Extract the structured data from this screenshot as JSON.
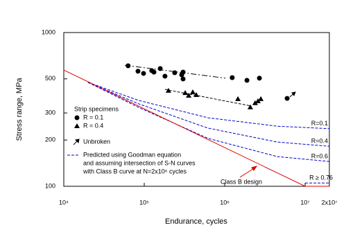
{
  "chart_data": {
    "type": "scatter",
    "x_label": "Endurance, cycles",
    "y_label": "Stress range, MPa",
    "log_x": true,
    "log_y": true,
    "grid": false,
    "xlim": [
      10000,
      20000000
    ],
    "ylim": [
      100,
      1000
    ],
    "xticks": [
      {
        "value": 10000,
        "label": "10⁴"
      },
      {
        "value": 100000,
        "label": "10⁵"
      },
      {
        "value": 1000000,
        "label": "10⁶"
      },
      {
        "value": 10000000,
        "label": "10⁷"
      },
      {
        "value": 20000000,
        "label": "2x10⁷"
      }
    ],
    "yticks": [
      100,
      200,
      300,
      500,
      1000
    ],
    "legend": {
      "title": "Strip specimens",
      "unbroken": "Unbroken",
      "note": [
        "Predicted using Goodman equation",
        "and assuming intersection of S-N curves",
        "with Class B curve at N=2x10⁶ cycles"
      ]
    },
    "series": [
      {
        "name": "R = 0.1",
        "color": "#000000",
        "marker": "circle",
        "line": "none",
        "x": [
          63000,
          83600,
          98000,
          124000,
          132000,
          158000,
          181000,
          239000,
          292000,
          304000,
          304000,
          1240000,
          1890000,
          2700000,
          5970000
        ],
        "values": [
          608,
          560,
          542,
          565,
          553,
          583,
          520,
          548,
          531,
          553,
          499,
          509,
          489,
          505,
          373
        ]
      },
      {
        "name": "R = 0.4",
        "color": "#000000",
        "marker": "triangle",
        "line": "none",
        "x": [
          200000,
          323000,
          357000,
          401000,
          443000,
          1460000,
          2080000,
          2390000,
          2590000,
          2810000
        ],
        "values": [
          419,
          405,
          389,
          410,
          393,
          370,
          327,
          348,
          358,
          370
        ]
      },
      {
        "color": "#000000",
        "marker": "none",
        "line": "dashdot",
        "x": [
          57400,
          1020000
        ],
        "values": [
          613,
          505
        ]
      },
      {
        "color": "#000000",
        "marker": "none",
        "line": "dash",
        "x": [
          181000,
          2130000
        ],
        "values": [
          427,
          333
        ]
      },
      {
        "name": "R=0.1",
        "color": "#0000cc",
        "marker": "none",
        "line": "dash",
        "x": [
          20000,
          85000,
          620000,
          4500000,
          20000000
        ],
        "values": [
          474,
          362,
          279,
          246,
          237
        ]
      },
      {
        "name": "R=0.4",
        "color": "#0000cc",
        "marker": "none",
        "line": "dash",
        "x": [
          20000,
          85000,
          620000,
          4500000,
          20000000
        ],
        "values": [
          474,
          344,
          239,
          194,
          182
        ]
      },
      {
        "name": "R=0.6",
        "color": "#0000cc",
        "marker": "none",
        "line": "dash",
        "x": [
          20000,
          85000,
          620000,
          4500000,
          20000000
        ],
        "values": [
          474,
          326,
          205,
          156,
          145
        ]
      },
      {
        "name": "R ≥ 0.76",
        "color": "#0000cc",
        "marker": "none",
        "line": "dash",
        "x": [
          10000000,
          20000000
        ],
        "values": [
          105,
          105
        ]
      },
      {
        "name": "Class B design",
        "color": "#dd0000",
        "marker": "none",
        "line": "solid",
        "x": [
          10000,
          10000000,
          20000000
        ],
        "values": [
          570,
          100,
          100
        ]
      }
    ]
  }
}
